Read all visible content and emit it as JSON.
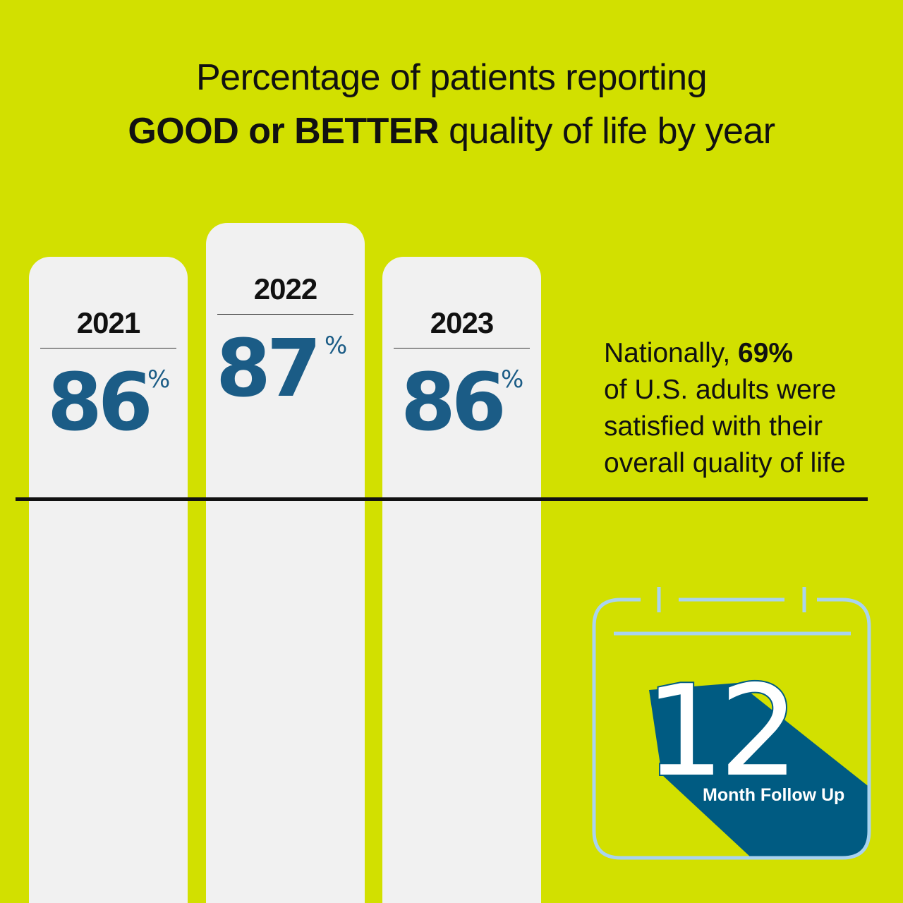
{
  "title": {
    "line1": "Percentage of patients reporting",
    "line2_bold": "GOOD or BETTER",
    "line2_rest": " quality of life by year"
  },
  "chart_data": {
    "type": "bar",
    "categories": [
      "2021",
      "2022",
      "2023"
    ],
    "values": [
      86,
      87,
      86
    ],
    "value_suffix": "%",
    "title": "Percentage of patients reporting GOOD or BETTER quality of life by year",
    "reference_line": {
      "value": 69,
      "note": "Nationally, 69% of U.S. adults were satisfied with their overall quality of life"
    }
  },
  "bars": [
    {
      "year": "2021",
      "value": "86",
      "suffix": "%"
    },
    {
      "year": "2022",
      "value": "87",
      "suffix": "%"
    },
    {
      "year": "2023",
      "value": "86",
      "suffix": "%"
    }
  ],
  "national": {
    "line1_prefix": "Nationally, ",
    "line1_bold": "69%",
    "line2": "of U.S. adults were",
    "line3": "satisfied with their",
    "line4": "overall quality of life"
  },
  "calendar": {
    "number": "12",
    "label": "Month Follow Up",
    "icon": "calendar-icon"
  },
  "colors": {
    "background": "#d2e000",
    "bar": "#f1f1f1",
    "accent_blue": "#1b5c86",
    "calendar_outline": "#a9d3ef",
    "calendar_fill": "#005b82"
  }
}
